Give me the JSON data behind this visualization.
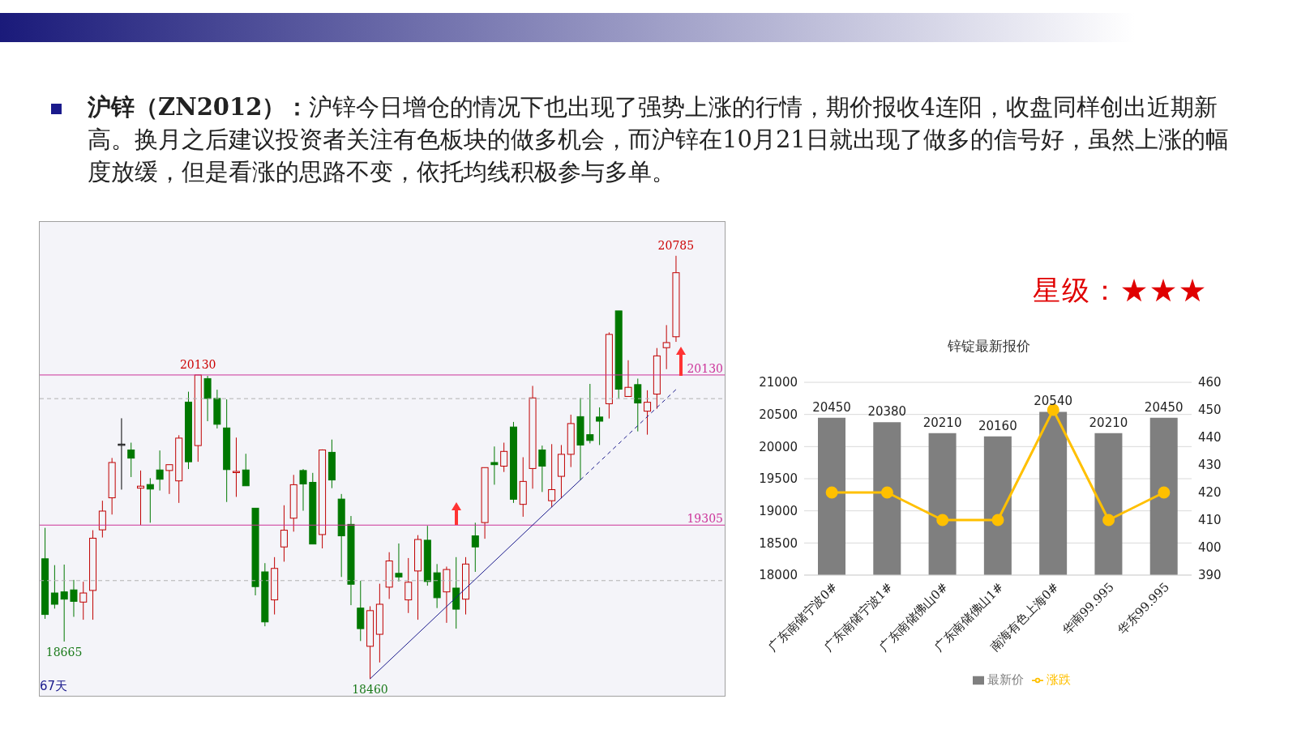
{
  "chart_data": [
    {
      "type": "candlestick",
      "title": "沪锌（ZN2012）：",
      "subtitle": "沪锌今日增仓的情况下也出现了强势上涨的行情，期价报收4连阳，收盘同样创出近期新高。换月之后建议投资者关注有色板块的做多机会，而沪锌在10月21日就出现了做多的信号好，虽然上涨的幅度放缓，但是看涨的思路不变，依托均线积极参与多单。",
      "categories": [
        null,
        null,
        null,
        null,
        null,
        null,
        null,
        null,
        null,
        null,
        null,
        null,
        null,
        null,
        null,
        null,
        null,
        null,
        null,
        null,
        null,
        null,
        null,
        null,
        null,
        null,
        null,
        null,
        null,
        null,
        null,
        null,
        null,
        null,
        null,
        null,
        null,
        null,
        null,
        null,
        null,
        null,
        null,
        null,
        null,
        null,
        null,
        null,
        null,
        null,
        null,
        null,
        null,
        null,
        null,
        null,
        null,
        null,
        null,
        null,
        null,
        null,
        null,
        null,
        null,
        null,
        null
      ],
      "ohlc": [
        [
          19120,
          19290,
          18790,
          18814
        ],
        [
          18932,
          19085,
          18846,
          18870
        ],
        [
          18938,
          19088,
          18665,
          18898
        ],
        [
          18949,
          19004,
          18801,
          18886
        ],
        [
          18882,
          18994,
          18785,
          18932
        ],
        [
          18946,
          19277,
          18785,
          19233
        ],
        [
          19279,
          19439,
          19237,
          19382
        ],
        [
          19455,
          19674,
          19363,
          19649
        ],
        [
          19750,
          19892,
          19500,
          19750
        ],
        [
          19718,
          19758,
          19569,
          19673
        ],
        [
          19508,
          19605,
          19306,
          19519
        ],
        [
          19528,
          19563,
          19318,
          19503
        ],
        [
          19608,
          19715,
          19495,
          19557
        ],
        [
          19605,
          19637,
          19476,
          19637
        ],
        [
          19548,
          19799,
          19427,
          19783
        ],
        [
          19981,
          20038,
          19613,
          19653
        ],
        [
          19742,
          20130,
          19653,
          20130
        ],
        [
          20110,
          20125,
          19876,
          20001
        ],
        [
          20001,
          20049,
          19836,
          19859
        ],
        [
          19839,
          19996,
          19432,
          19610
        ],
        [
          19597,
          19786,
          19460,
          19600
        ],
        [
          19608,
          19697,
          19521,
          19521
        ],
        [
          19398,
          19398,
          18919,
          18967
        ],
        [
          19048,
          19096,
          18749,
          18773
        ],
        [
          18894,
          19129,
          18814,
          19067
        ],
        [
          19185,
          19414,
          19104,
          19277
        ],
        [
          19343,
          19581,
          19269,
          19527
        ],
        [
          19605,
          19613,
          19384,
          19531
        ],
        [
          19540,
          19592,
          19201,
          19201
        ],
        [
          19253,
          19721,
          19177,
          19718
        ],
        [
          19705,
          19775,
          19508,
          19553
        ],
        [
          19448,
          19476,
          19020,
          19246
        ],
        [
          19309,
          19355,
          18865,
          18980
        ],
        [
          18849,
          18999,
          18668,
          18736
        ],
        [
          18639,
          18859,
          18460,
          18835
        ],
        [
          18705,
          18983,
          18550,
          18870
        ],
        [
          18964,
          19156,
          18899,
          19108
        ],
        [
          19040,
          19204,
          18995,
          19020
        ],
        [
          18894,
          19124,
          18822,
          18991
        ],
        [
          19053,
          19250,
          18785,
          19226
        ],
        [
          19222,
          19301,
          18972,
          18995
        ],
        [
          19043,
          19091,
          18849,
          18906
        ],
        [
          18938,
          19077,
          18768,
          19061
        ],
        [
          18959,
          19129,
          18736,
          18843
        ],
        [
          18898,
          19129,
          18814,
          19091
        ],
        [
          19246,
          19318,
          19048,
          19185
        ],
        [
          19319,
          19621,
          19230,
          19621
        ],
        [
          19649,
          19737,
          19527,
          19637
        ],
        [
          19629,
          19758,
          19597,
          19710
        ],
        [
          19844,
          19872,
          19427,
          19447
        ],
        [
          19419,
          19678,
          19351,
          19545
        ],
        [
          19616,
          20070,
          19505,
          20004
        ],
        [
          19718,
          19742,
          19487,
          19629
        ],
        [
          19439,
          19750,
          19403,
          19500
        ],
        [
          19573,
          19745,
          19452,
          19694
        ],
        [
          19694,
          19912,
          19624,
          19863
        ],
        [
          19901,
          20004,
          19553,
          19745
        ],
        [
          19802,
          20081,
          19754,
          19770
        ],
        [
          19899,
          19952,
          19745,
          19876
        ],
        [
          19972,
          20364,
          19891,
          20353
        ],
        [
          20482,
          20482,
          20001,
          20052
        ],
        [
          20012,
          20211,
          20012,
          20062
        ],
        [
          20077,
          20110,
          19820,
          19976
        ],
        [
          19931,
          20046,
          19802,
          19980
        ],
        [
          20025,
          20278,
          19944,
          20235
        ],
        [
          20280,
          20404,
          20162,
          20308
        ],
        [
          20340,
          20785,
          20312,
          20692
        ]
      ],
      "colors": [
        "#007800",
        "#007800",
        "#007800",
        "#007800",
        "#c00000",
        "#c00000",
        "#c00000",
        "#c00000",
        "#000000",
        "#007800",
        "#c00000",
        "#007800",
        "#007800",
        "#c00000",
        "#c00000",
        "#007800",
        "#c00000",
        "#007800",
        "#007800",
        "#007800",
        "#c00000",
        "#007800",
        "#007800",
        "#007800",
        "#c00000",
        "#c00000",
        "#c00000",
        "#007800",
        "#007800",
        "#c00000",
        "#007800",
        "#007800",
        "#007800",
        "#007800",
        "#c00000",
        "#c00000",
        "#c00000",
        "#007800",
        "#c00000",
        "#c00000",
        "#007800",
        "#007800",
        "#c00000",
        "#007800",
        "#c00000",
        "#007800",
        "#c00000",
        "#007800",
        "#c00000",
        "#007800",
        "#c00000",
        "#c00000",
        "#007800",
        "#c00000",
        "#c00000",
        "#c00000",
        "#007800",
        "#007800",
        "#007800",
        "#c00000",
        "#007800",
        "#c00000",
        "#007800",
        "#c00000",
        "#c00000",
        "#c00000",
        "#c00000"
      ],
      "series": [
        {
          "type": "line",
          "values": [
            null,
            null,
            null,
            null,
            null,
            null,
            null,
            null,
            null,
            null,
            null,
            null,
            null,
            null,
            null,
            null,
            null,
            null,
            null,
            null,
            null,
            null,
            null,
            null,
            null,
            null,
            null,
            null,
            null,
            null,
            null,
            null,
            null,
            null,
            18460,
            null,
            null,
            null,
            null,
            null,
            null,
            null,
            null,
            null,
            null,
            null,
            null,
            null,
            null,
            null,
            null,
            null,
            null,
            null,
            null,
            null,
            19553,
            null,
            null,
            null,
            null,
            null,
            null,
            null,
            null,
            null,
            null
          ],
          "color": "#1a1a8c",
          "line_style": "solid"
        },
        {
          "type": "line",
          "values": [
            null,
            null,
            null,
            null,
            null,
            null,
            null,
            null,
            null,
            null,
            null,
            null,
            null,
            null,
            null,
            null,
            null,
            null,
            null,
            null,
            null,
            null,
            null,
            null,
            null,
            null,
            null,
            null,
            null,
            null,
            null,
            null,
            null,
            null,
            null,
            null,
            null,
            null,
            null,
            null,
            null,
            null,
            null,
            null,
            null,
            null,
            null,
            null,
            null,
            null,
            null,
            null,
            null,
            null,
            null,
            null,
            19553,
            null,
            null,
            null,
            null,
            null,
            null,
            null,
            null,
            null,
            20050
          ],
          "color": "#1a1a8c",
          "line_style": "dashed"
        }
      ],
      "ref_lines": [
        {
          "axis": "y",
          "value": 20130,
          "label": "20130",
          "color": "#cc3399"
        },
        {
          "axis": "y",
          "value": 19305,
          "label": "19305",
          "color": "#cc3399"
        },
        {
          "axis": "y",
          "value": 20000,
          "color": "#b0b0b0",
          "line_style": "dashed"
        },
        {
          "axis": "y",
          "value": 19000,
          "color": "#b0b0b0",
          "line_style": "dashed"
        }
      ],
      "annotations": [
        {
          "text": "20785",
          "y": 20785
        },
        {
          "text": "20130",
          "y": 20130
        },
        {
          "text": "18665",
          "y": 18665
        },
        {
          "text": "18460",
          "y": 18460
        },
        "67天"
      ]
    },
    {
      "type": "bar",
      "title": "锌锭最新报价",
      "categories": [
        "广东南储宁波0#",
        "广东南储宁波1#",
        "广东南储佛山0#",
        "广东南储佛山1#",
        "南海有色上海0#",
        "华南99.995",
        "华东99.995"
      ],
      "series": [
        {
          "name": "最新价",
          "type": "bar",
          "color": "#7f7f7f",
          "values": [
            20450,
            20380,
            20210,
            20160,
            20540,
            20210,
            20450
          ],
          "value_labels": [
            "20450",
            "20380",
            "20210",
            "20160",
            "20540",
            "20210",
            "20450"
          ]
        },
        {
          "name": "涨跌",
          "type": "line",
          "axis": "y2",
          "color": "#ffc000",
          "values": [
            420,
            420,
            410,
            410,
            450,
            410,
            420
          ]
        }
      ],
      "ylim": [
        18000,
        21000
      ],
      "yticks": [
        18000,
        18500,
        19000,
        19500,
        20000,
        20500,
        21000
      ],
      "y2lim": [
        390,
        460
      ],
      "y2ticks": [
        390,
        400,
        410,
        420,
        430,
        440,
        450,
        460
      ],
      "grid": "y",
      "legend": "bottom",
      "marker": "circle",
      "annotations": [
        "星级：★★★"
      ]
    }
  ]
}
